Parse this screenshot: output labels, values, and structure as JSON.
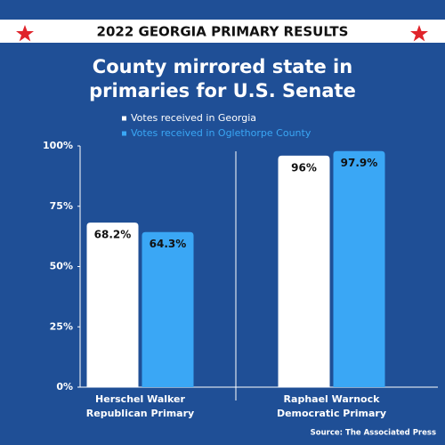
{
  "chart_data": {
    "type": "bar",
    "banner": "2022 GEORGIA PRIMARY RESULTS",
    "title": "County mirrored state in primaries for U.S. Senate",
    "categories": [
      "Herschel Walker",
      "Raphael Warnock"
    ],
    "category_subtitles": [
      "Republican Primary",
      "Democratic Primary"
    ],
    "series": [
      {
        "name": "Votes received in Georgia",
        "color": "#ffffff",
        "values": [
          68.2,
          96
        ],
        "value_labels": [
          "68.2%",
          "96%"
        ]
      },
      {
        "name": "Votes received in Oglethorpe County",
        "color": "#3aa7f5",
        "values": [
          64.3,
          97.9
        ],
        "value_labels": [
          "64.3%",
          "97.9%"
        ]
      }
    ],
    "ylim": [
      0,
      100
    ],
    "yticks": [
      {
        "value": 0,
        "label": "0%"
      },
      {
        "value": 25,
        "label": "25%"
      },
      {
        "value": 50,
        "label": "50%"
      },
      {
        "value": 75,
        "label": "75%"
      },
      {
        "value": 100,
        "label": "100%"
      }
    ],
    "source": "Source: The Associated Press"
  }
}
